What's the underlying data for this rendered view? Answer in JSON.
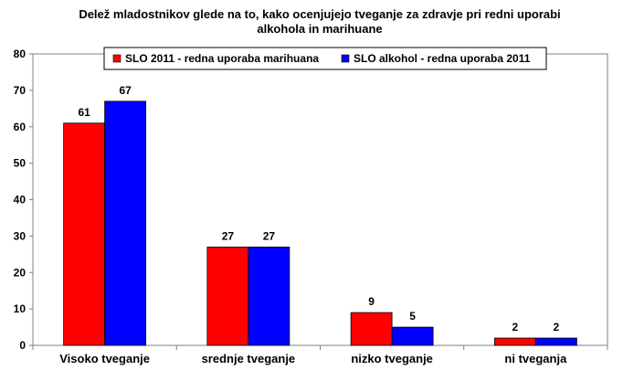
{
  "chart_data": {
    "type": "bar",
    "title": "Delež mladostnikov glede na to, kako ocenjujejo tveganje za zdravje pri redni uporabi alkohola in marihuane",
    "categories": [
      "Visoko tveganje",
      "srednje tveganje",
      "nizko tveganje",
      "ni tveganja"
    ],
    "series": [
      {
        "name": "SLO 2011 - redna uporaba marihuana",
        "values": [
          61,
          27,
          9,
          2
        ],
        "color": "#ff0000"
      },
      {
        "name": "SLO alkohol - redna uporaba 2011",
        "values": [
          67,
          27,
          5,
          2
        ],
        "color": "#0000ff"
      }
    ],
    "ylim": [
      0,
      80
    ],
    "yticks": [
      0,
      10,
      20,
      30,
      40,
      50,
      60,
      70,
      80
    ],
    "xlabel": "",
    "ylabel": "",
    "grid": false,
    "legend_position": "top-center"
  }
}
